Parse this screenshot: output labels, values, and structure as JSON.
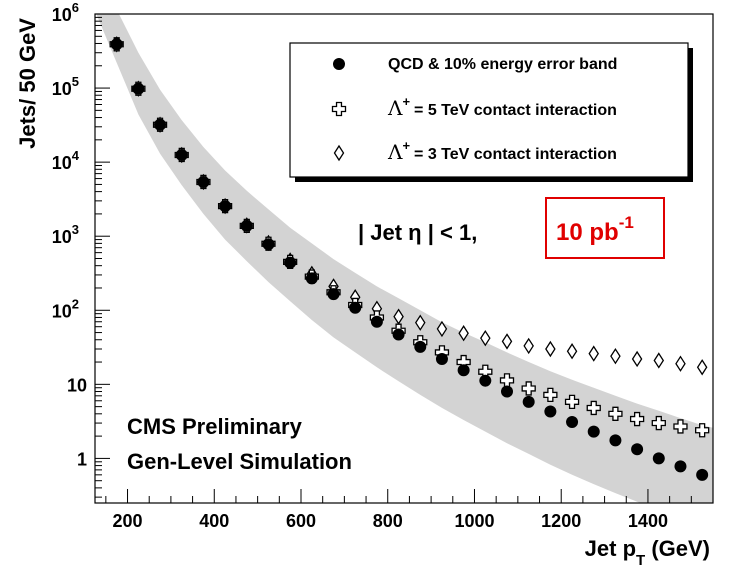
{
  "chart_data": {
    "type": "scatter",
    "xlabel": "Jet p",
    "xlabel_sub": "T",
    "xlabel_unit": " (GeV)",
    "ylabel": "Jets/ 50 GeV",
    "xlim": [
      125,
      1550
    ],
    "ylim": [
      0.25,
      1000000
    ],
    "yscale": "log",
    "x_ticks": [
      200,
      400,
      600,
      800,
      1000,
      1200,
      1400
    ],
    "y_ticks": [
      {
        "value": 1000000,
        "base": "10",
        "exp": "6"
      },
      {
        "value": 100000,
        "base": "10",
        "exp": "5"
      },
      {
        "value": 10000,
        "base": "10",
        "exp": "4"
      },
      {
        "value": 1000,
        "base": "10",
        "exp": "3"
      },
      {
        "value": 100,
        "base": "10",
        "exp": "2"
      },
      {
        "value": 10,
        "base": "10",
        "exp": ""
      },
      {
        "value": 1,
        "base": "1",
        "exp": ""
      }
    ],
    "x": [
      175,
      225,
      275,
      325,
      375,
      425,
      475,
      525,
      575,
      625,
      675,
      725,
      775,
      825,
      875,
      925,
      975,
      1025,
      1075,
      1125,
      1175,
      1225,
      1275,
      1325,
      1375,
      1425,
      1475,
      1525
    ],
    "series": [
      {
        "name": "QCD  &  10% energy error band",
        "marker": "filled-circle",
        "values": [
          390000,
          98000,
          32000,
          12500,
          5400,
          2550,
          1380,
          780,
          440,
          270,
          165,
          108,
          70,
          47,
          32,
          22,
          15.5,
          11.2,
          8.0,
          5.8,
          4.3,
          3.1,
          2.3,
          1.75,
          1.33,
          1.0,
          0.78,
          0.6
        ]
      },
      {
        "name": "= 5 TeV contact interaction",
        "marker": "open-cross",
        "values": [
          390000,
          98000,
          32000,
          12500,
          5400,
          2550,
          1380,
          790,
          450,
          285,
          175,
          118,
          80,
          53,
          37,
          27,
          20,
          14.8,
          11.3,
          8.8,
          7.2,
          5.8,
          4.8,
          4.0,
          3.4,
          3.0,
          2.7,
          2.4
        ]
      },
      {
        "name": "= 3 TeV contact interaction",
        "marker": "open-diamond",
        "values": [
          390000,
          98000,
          32000,
          12500,
          5400,
          2550,
          1400,
          810,
          470,
          310,
          210,
          150,
          105,
          82,
          68,
          56,
          49,
          42,
          38,
          33,
          30,
          28,
          26,
          24,
          22,
          21,
          19,
          17
        ]
      }
    ],
    "band": {
      "x": [
        125,
        175,
        225,
        275,
        325,
        375,
        425,
        475,
        525,
        575,
        625,
        675,
        725,
        775,
        825,
        875,
        925,
        975,
        1025,
        1075,
        1125,
        1175,
        1225,
        1275,
        1325,
        1375,
        1425,
        1475,
        1525,
        1550
      ],
      "upper": [
        3500000,
        1150000,
        300000,
        95000,
        37000,
        16000,
        7700,
        4100,
        2300,
        1300,
        800,
        490,
        320,
        210,
        145,
        100,
        69,
        50,
        37,
        27,
        20,
        15,
        11.5,
        9.0,
        7.0,
        5.5,
        4.4,
        3.5,
        2.8,
        2.6
      ],
      "lower": [
        1100000,
        220000,
        44000,
        13000,
        4900,
        2000,
        900,
        460,
        240,
        132,
        74,
        43,
        27,
        17,
        11,
        7.2,
        4.8,
        3.3,
        2.3,
        1.6,
        1.15,
        0.82,
        0.6,
        0.45,
        0.34,
        0.26,
        0.2,
        0.16,
        0.13,
        0.12
      ]
    },
    "band_color": "#d3d3d3",
    "legend_placement": "top-right",
    "legend_lambda": "Λ",
    "legend_plus": "+",
    "annotation_eta": "| Jet η | < 1,",
    "annotation_lumi": "10 pb",
    "annotation_lumi_exp": "-1",
    "lumi_color": "#e00000",
    "cms_line1": "CMS Preliminary",
    "cms_line2": "Gen-Level Simulation",
    "grid": false
  }
}
